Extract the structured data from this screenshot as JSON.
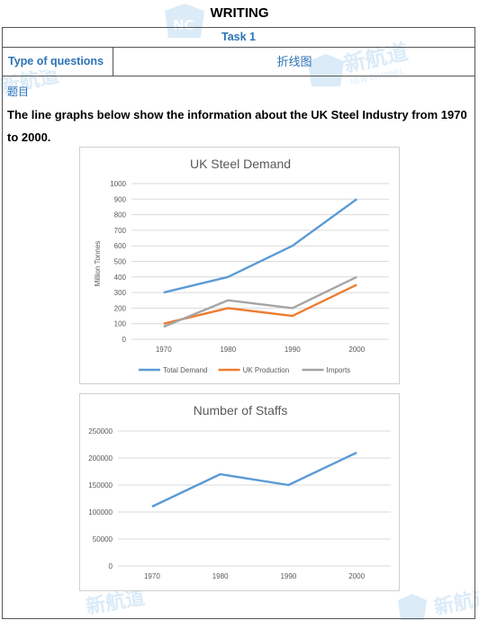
{
  "header": {
    "title": "WRITING"
  },
  "task": {
    "label": "Task 1"
  },
  "type_row": {
    "label": "Type of questions",
    "value": "折线图"
  },
  "prompt": {
    "section": "题目",
    "text": "The line graphs below show the information about the UK Steel Industry from 1970 to 2000."
  },
  "watermark": {
    "brand": "新航道",
    "sub": "NEW CHANNEL",
    "logo": "NC"
  },
  "chart_data": [
    {
      "type": "line",
      "title": "UK Steel Demand",
      "ylabel": "Million Tonnes",
      "xlabel": "",
      "categories": [
        "1970",
        "1980",
        "1990",
        "2000"
      ],
      "ylim": [
        0,
        1000
      ],
      "yticks": [
        0,
        100,
        200,
        300,
        400,
        500,
        600,
        700,
        800,
        900,
        1000
      ],
      "grid": true,
      "legend": "bottom",
      "series": [
        {
          "name": "Total Demand",
          "values": [
            300,
            400,
            600,
            900
          ],
          "color": "#5b9bd5"
        },
        {
          "name": "UK Production",
          "values": [
            100,
            200,
            150,
            350
          ],
          "color": "#ed7d31"
        },
        {
          "name": "Imports",
          "values": [
            80,
            250,
            200,
            400
          ],
          "color": "#a5a5a5"
        }
      ]
    },
    {
      "type": "line",
      "title": "Number of Staffs",
      "ylabel": "",
      "xlabel": "",
      "categories": [
        "1970",
        "1980",
        "1990",
        "2000"
      ],
      "ylim": [
        0,
        250000
      ],
      "yticks": [
        0,
        50000,
        100000,
        150000,
        200000,
        250000
      ],
      "grid": true,
      "legend": "none",
      "series": [
        {
          "values": [
            110000,
            170000,
            150000,
            210000
          ],
          "color": "#5b9bd5"
        }
      ]
    }
  ]
}
